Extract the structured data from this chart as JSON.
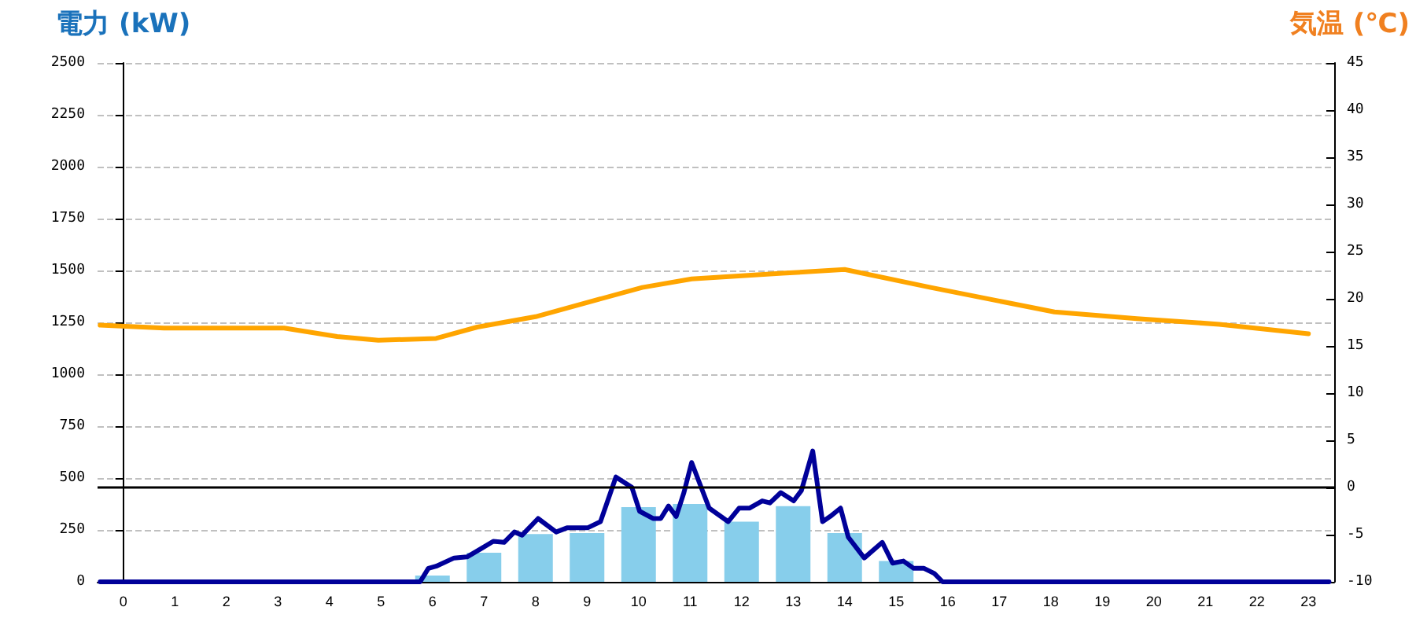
{
  "chart_data": {
    "type": "bar",
    "ylabel": "電力 (kW)",
    "y2label": "気温 (℃)",
    "x": [
      0,
      1,
      2,
      3,
      4,
      5,
      6,
      7,
      8,
      9,
      10,
      11,
      12,
      13,
      14,
      15,
      16,
      17,
      18,
      19,
      20,
      21,
      22,
      23
    ],
    "xlim": [
      -0.5,
      23.5
    ],
    "xticks": [
      0,
      1,
      2,
      3,
      4,
      5,
      6,
      7,
      8,
      9,
      10,
      11,
      12,
      13,
      14,
      15,
      16,
      17,
      18,
      19,
      20,
      21,
      22,
      23
    ],
    "series": [
      {
        "color": "#87ceeb",
        "values": [
          0,
          0,
          0,
          0,
          0,
          0,
          30,
          140,
          230,
          235,
          360,
          375,
          290,
          365,
          235,
          100,
          0,
          0,
          0,
          0,
          0,
          0,
          0,
          0
        ]
      },
      {
        "type": "line",
        "color": "#000099",
        "x": [
          -0.45,
          5.76,
          5.92,
          6.07,
          6.42,
          6.67,
          6.98,
          7.18,
          7.39,
          7.59,
          7.74,
          8.05,
          8.4,
          8.61,
          9.01,
          9.26,
          9.56,
          9.87,
          10.02,
          10.28,
          10.43,
          10.58,
          10.73,
          10.88,
          11.03,
          11.37,
          11.74,
          11.95,
          12.15,
          12.4,
          12.55,
          12.76,
          13.01,
          13.16,
          13.38,
          13.57,
          13.72,
          13.92,
          14.07,
          14.38,
          14.73,
          14.93,
          15.14,
          15.34,
          15.54,
          15.74,
          15.9,
          23.4
        ],
        "values": [
          0,
          0,
          65,
          75,
          115,
          120,
          165,
          195,
          190,
          240,
          225,
          305,
          240,
          260,
          260,
          290,
          505,
          455,
          340,
          305,
          305,
          365,
          315,
          430,
          575,
          355,
          290,
          355,
          355,
          390,
          380,
          430,
          390,
          440,
          630,
          290,
          315,
          355,
          215,
          115,
          190,
          90,
          100,
          65,
          65,
          40,
          0,
          0
        ]
      },
      {
        "type": "line",
        "color": "#ffa500",
        "axis": "y2",
        "x": [
          -0.45,
          0.79,
          3.12,
          4.15,
          4.95,
          6.07,
          6.87,
          8.0,
          10.07,
          11.03,
          12.79,
          14.0,
          15.67,
          18.07,
          19.67,
          21.27,
          23.0
        ],
        "values": [
          17.2,
          16.9,
          16.9,
          16.0,
          15.6,
          15.8,
          17.0,
          18.1,
          21.2,
          22.1,
          22.7,
          23.1,
          21.2,
          18.6,
          17.9,
          17.3,
          16.3
        ]
      }
    ],
    "ylim": [
      0,
      2500
    ],
    "yticks": [
      0,
      250,
      500,
      750,
      1000,
      1250,
      1500,
      1750,
      2000,
      2250,
      2500
    ],
    "y2lim": [
      -10,
      45
    ],
    "y2ticks": [
      -10,
      -5,
      0,
      5,
      10,
      15,
      20,
      25,
      30,
      35,
      40,
      45
    ],
    "ref_lines": [
      {
        "axis": "y2",
        "value": 0,
        "color": "#000000",
        "line_style": "solid"
      }
    ],
    "grid": "y",
    "marker": "none",
    "line_style": "solid"
  }
}
